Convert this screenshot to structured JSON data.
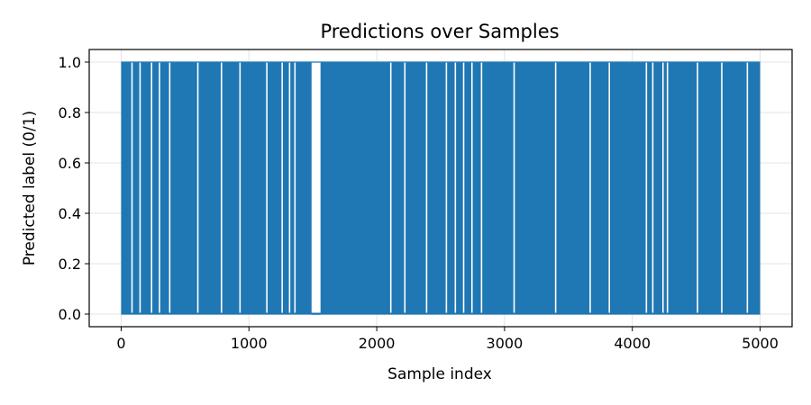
{
  "chart_data": {
    "type": "line",
    "title": "Predictions over Samples",
    "xlabel": "Sample index",
    "ylabel": "Predicted label (0/1)",
    "xlim": [
      -250,
      5250
    ],
    "ylim": [
      -0.05,
      1.05
    ],
    "xticks": [
      0,
      1000,
      2000,
      3000,
      4000,
      5000
    ],
    "xtick_labels": [
      "0",
      "1000",
      "2000",
      "3000",
      "4000",
      "5000"
    ],
    "yticks": [
      0.0,
      0.2,
      0.4,
      0.6,
      0.8,
      1.0
    ],
    "ytick_labels": [
      "0.0",
      "0.2",
      "0.4",
      "0.6",
      "0.8",
      "1.0"
    ],
    "grid": true,
    "series": [
      {
        "name": "predictions",
        "color": "#1f77b4",
        "n_samples": 5000,
        "values_description": "binary 0/1 predictions; segments listed as [start_index, end_index, value]",
        "segments": [
          [
            0,
            1490,
            "mixed"
          ],
          [
            1490,
            1560,
            0
          ],
          [
            1560,
            5000,
            "mixed"
          ]
        ],
        "visible_zero_gaps": [
          85,
          148,
          238,
          300,
          380,
          600,
          785,
          930,
          1140,
          1260,
          1318,
          1360,
          1510,
          1540,
          2110,
          2220,
          2390,
          2545,
          2615,
          2680,
          2745,
          2820,
          3075,
          3400,
          3670,
          3820,
          4110,
          4160,
          4240,
          4275,
          4510,
          4700,
          4900
        ]
      }
    ]
  }
}
